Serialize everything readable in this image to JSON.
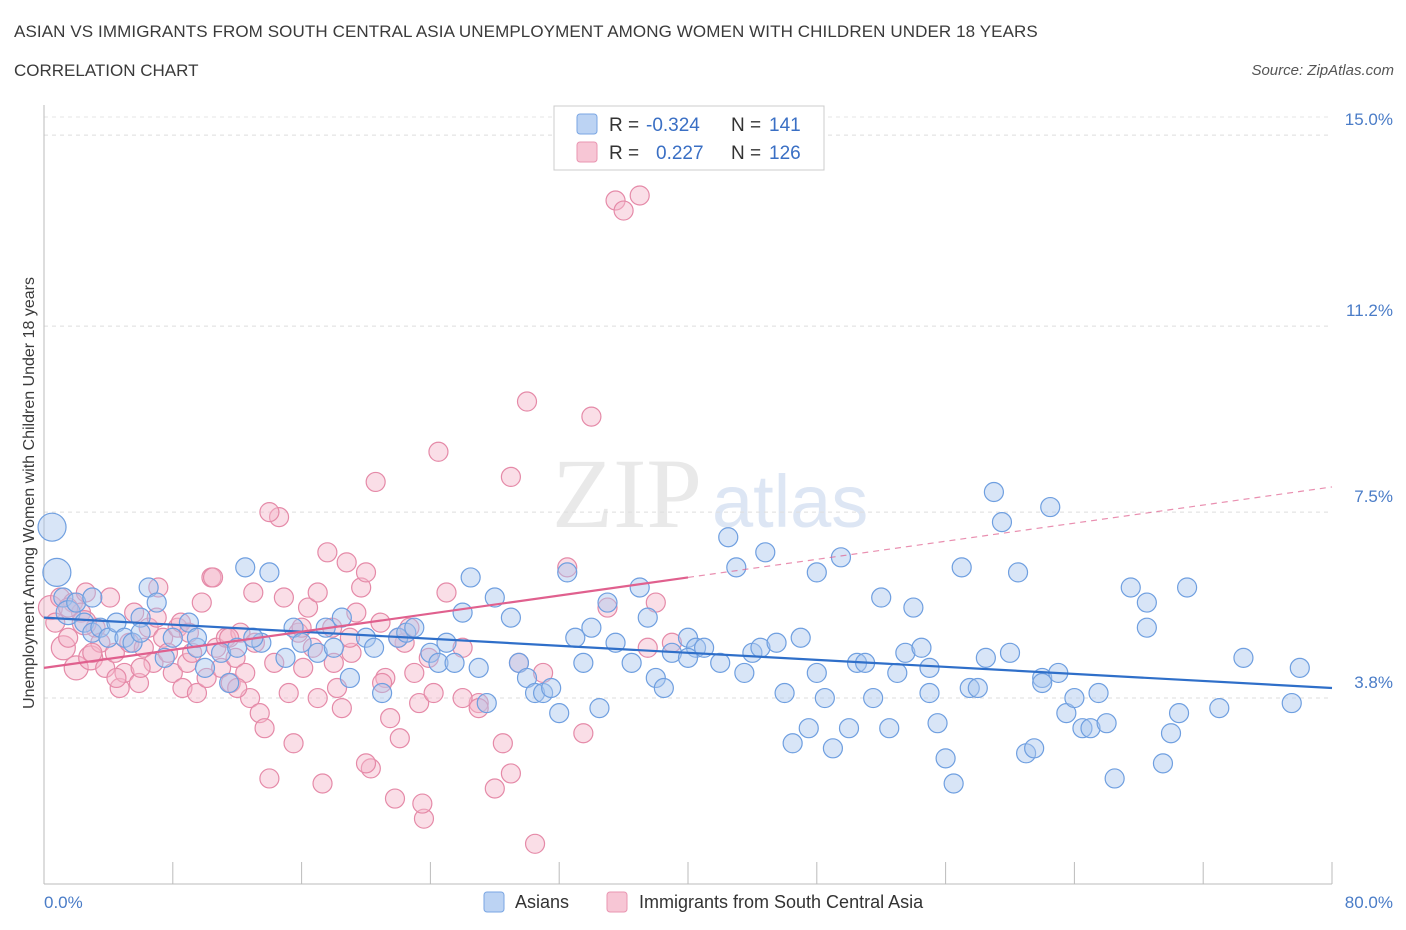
{
  "header": {
    "title": "ASIAN VS IMMIGRANTS FROM SOUTH CENTRAL ASIA UNEMPLOYMENT AMONG WOMEN WITH CHILDREN UNDER 18 YEARS",
    "subtitle": "CORRELATION CHART",
    "source": "Source: ZipAtlas.com"
  },
  "watermark": {
    "zip": "ZIP",
    "atlas": "atlas"
  },
  "legend": {
    "asians": {
      "r_label": "R =",
      "r_value": "-0.324",
      "n_label": "N =",
      "n_value": "141"
    },
    "immigrants": {
      "r_label": "R =",
      "r_value": "0.227",
      "n_label": "N =",
      "n_value": "126"
    }
  },
  "bottom_legend": {
    "asians": "Asians",
    "immigrants": "Immigrants from South Central Asia"
  },
  "colors": {
    "asian_fill": "#a9c6ee",
    "asian_stroke": "#6f9fe0",
    "asian_line": "#2f6fc9",
    "imm_fill": "#f4b6ca",
    "imm_stroke": "#e58aa8",
    "imm_line": "#e0608e",
    "tick_label": "#4a7cc7"
  },
  "chart_data": {
    "type": "scatter",
    "title": "ASIAN VS IMMIGRANTS FROM SOUTH CENTRAL ASIA UNEMPLOYMENT AMONG WOMEN WITH CHILDREN UNDER 18 YEARS",
    "ylabel": "Unemployment Among Women with Children Under 18 years",
    "xlabel": "",
    "xlim": [
      0,
      80
    ],
    "ylim": [
      0.1,
      15.6
    ],
    "x_tick_labels": [
      "0.0%",
      "80.0%"
    ],
    "y_ticks": [
      {
        "value": 3.8,
        "label": "3.8%"
      },
      {
        "value": 7.5,
        "label": "7.5%"
      },
      {
        "value": 11.2,
        "label": "11.2%"
      },
      {
        "value": 15.0,
        "label": "15.0%"
      }
    ],
    "grid": true,
    "legend_position": "top-center",
    "series": [
      {
        "name": "Asians",
        "trend": {
          "x": [
            0,
            80
          ],
          "y": [
            5.4,
            4.0
          ]
        },
        "points": [
          [
            0.5,
            7.2
          ],
          [
            0.8,
            6.3
          ],
          [
            1.2,
            5.8
          ],
          [
            1.5,
            5.5
          ],
          [
            2.0,
            5.7
          ],
          [
            2.5,
            5.3
          ],
          [
            3.0,
            5.1
          ],
          [
            3.5,
            5.2
          ],
          [
            4.0,
            5.0
          ],
          [
            4.5,
            5.3
          ],
          [
            5.0,
            5.0
          ],
          [
            5.5,
            4.9
          ],
          [
            6.0,
            5.4
          ],
          [
            6.5,
            6.0
          ],
          [
            7.0,
            5.7
          ],
          [
            7.5,
            4.6
          ],
          [
            8.0,
            5.0
          ],
          [
            9.0,
            5.3
          ],
          [
            9.5,
            4.8
          ],
          [
            10.0,
            4.4
          ],
          [
            11.0,
            4.7
          ],
          [
            11.5,
            4.1
          ],
          [
            12.0,
            4.8
          ],
          [
            12.5,
            6.4
          ],
          [
            13.5,
            4.9
          ],
          [
            14.0,
            6.3
          ],
          [
            15.0,
            4.6
          ],
          [
            15.5,
            5.2
          ],
          [
            16.0,
            4.9
          ],
          [
            17.0,
            4.7
          ],
          [
            17.5,
            5.2
          ],
          [
            18.0,
            4.8
          ],
          [
            19.0,
            4.2
          ],
          [
            20.0,
            5.0
          ],
          [
            20.5,
            4.8
          ],
          [
            21.0,
            3.9
          ],
          [
            22.0,
            5.0
          ],
          [
            22.5,
            5.1
          ],
          [
            23.0,
            5.2
          ],
          [
            24.0,
            4.7
          ],
          [
            24.5,
            4.5
          ],
          [
            25.5,
            4.5
          ],
          [
            26.0,
            5.5
          ],
          [
            26.5,
            6.2
          ],
          [
            27.0,
            4.4
          ],
          [
            27.5,
            3.7
          ],
          [
            28.0,
            5.8
          ],
          [
            29.0,
            5.4
          ],
          [
            29.5,
            4.5
          ],
          [
            30.0,
            4.2
          ],
          [
            30.5,
            3.9
          ],
          [
            31.0,
            3.9
          ],
          [
            31.5,
            4.0
          ],
          [
            32.0,
            3.5
          ],
          [
            32.5,
            6.3
          ],
          [
            33.0,
            5.0
          ],
          [
            33.5,
            4.5
          ],
          [
            34.5,
            3.6
          ],
          [
            35.0,
            5.7
          ],
          [
            35.5,
            4.9
          ],
          [
            36.5,
            4.5
          ],
          [
            37.0,
            6.0
          ],
          [
            37.5,
            5.4
          ],
          [
            38.0,
            4.2
          ],
          [
            38.5,
            4.0
          ],
          [
            39.0,
            4.7
          ],
          [
            40.0,
            5.0
          ],
          [
            40.5,
            4.8
          ],
          [
            41.0,
            4.8
          ],
          [
            42.0,
            4.5
          ],
          [
            42.5,
            7.0
          ],
          [
            43.0,
            6.4
          ],
          [
            43.5,
            4.3
          ],
          [
            44.0,
            4.7
          ],
          [
            44.5,
            4.8
          ],
          [
            44.8,
            6.7
          ],
          [
            45.5,
            4.9
          ],
          [
            46.0,
            3.9
          ],
          [
            46.5,
            2.9
          ],
          [
            47.0,
            5.0
          ],
          [
            47.5,
            3.2
          ],
          [
            48.0,
            6.3
          ],
          [
            48.5,
            3.8
          ],
          [
            49.0,
            2.8
          ],
          [
            49.5,
            6.6
          ],
          [
            50.0,
            3.2
          ],
          [
            50.5,
            4.5
          ],
          [
            51.0,
            4.5
          ],
          [
            51.5,
            3.8
          ],
          [
            52.0,
            5.8
          ],
          [
            52.5,
            3.2
          ],
          [
            53.0,
            4.3
          ],
          [
            53.5,
            4.7
          ],
          [
            54.0,
            5.6
          ],
          [
            54.5,
            4.8
          ],
          [
            55.0,
            3.9
          ],
          [
            55.5,
            3.3
          ],
          [
            56.0,
            2.6
          ],
          [
            56.5,
            2.1
          ],
          [
            57.0,
            6.4
          ],
          [
            57.5,
            4.0
          ],
          [
            58.0,
            4.0
          ],
          [
            58.5,
            4.6
          ],
          [
            59.0,
            7.9
          ],
          [
            59.5,
            7.3
          ],
          [
            60.0,
            4.7
          ],
          [
            60.5,
            6.3
          ],
          [
            61.0,
            2.7
          ],
          [
            61.5,
            2.8
          ],
          [
            62.0,
            4.2
          ],
          [
            62.5,
            7.6
          ],
          [
            63.0,
            4.3
          ],
          [
            63.5,
            3.5
          ],
          [
            64.0,
            3.8
          ],
          [
            64.5,
            3.2
          ],
          [
            65.0,
            3.2
          ],
          [
            65.5,
            3.9
          ],
          [
            66.0,
            3.3
          ],
          [
            66.5,
            2.2
          ],
          [
            67.5,
            6.0
          ],
          [
            68.5,
            5.2
          ],
          [
            68.5,
            5.7
          ],
          [
            69.5,
            2.5
          ],
          [
            70.0,
            3.1
          ],
          [
            70.5,
            3.5
          ],
          [
            71.0,
            6.0
          ],
          [
            73.0,
            3.6
          ],
          [
            74.5,
            4.6
          ],
          [
            77.5,
            3.7
          ],
          [
            78.0,
            4.4
          ],
          [
            3.0,
            5.8
          ],
          [
            6.0,
            5.1
          ],
          [
            9.5,
            5.0
          ],
          [
            13.0,
            5.0
          ],
          [
            18.5,
            5.4
          ],
          [
            25.0,
            4.9
          ],
          [
            34.0,
            5.2
          ],
          [
            40.0,
            4.6
          ],
          [
            48.0,
            4.3
          ],
          [
            55.0,
            4.4
          ],
          [
            62.0,
            4.1
          ]
        ]
      },
      {
        "name": "Immigrants from South Central Asia",
        "trend": {
          "x": [
            0,
            40
          ],
          "y": [
            4.4,
            6.2
          ]
        },
        "trend_extension": {
          "x": [
            40,
            80
          ],
          "y": [
            6.2,
            8.0
          ]
        },
        "points": [
          [
            0.4,
            5.6
          ],
          [
            0.7,
            5.3
          ],
          [
            1.0,
            5.8
          ],
          [
            1.2,
            4.8
          ],
          [
            1.5,
            5.0
          ],
          [
            1.8,
            5.7
          ],
          [
            2.0,
            4.4
          ],
          [
            2.3,
            5.5
          ],
          [
            2.6,
            5.9
          ],
          [
            2.9,
            4.6
          ],
          [
            3.2,
            5.2
          ],
          [
            3.5,
            4.9
          ],
          [
            3.8,
            4.4
          ],
          [
            4.1,
            5.8
          ],
          [
            4.4,
            4.7
          ],
          [
            4.7,
            4.0
          ],
          [
            5.0,
            4.3
          ],
          [
            5.3,
            4.9
          ],
          [
            5.6,
            5.5
          ],
          [
            5.9,
            4.1
          ],
          [
            6.2,
            4.8
          ],
          [
            6.5,
            5.2
          ],
          [
            6.8,
            4.5
          ],
          [
            7.1,
            6.0
          ],
          [
            7.4,
            5.0
          ],
          [
            7.7,
            4.7
          ],
          [
            8.0,
            4.3
          ],
          [
            8.3,
            5.2
          ],
          [
            8.6,
            4.0
          ],
          [
            8.9,
            4.5
          ],
          [
            9.2,
            4.7
          ],
          [
            9.5,
            3.9
          ],
          [
            9.8,
            5.7
          ],
          [
            10.1,
            4.2
          ],
          [
            10.4,
            6.2
          ],
          [
            10.7,
            4.8
          ],
          [
            11.0,
            4.4
          ],
          [
            11.3,
            5.0
          ],
          [
            11.6,
            4.1
          ],
          [
            11.9,
            4.6
          ],
          [
            12.2,
            5.1
          ],
          [
            12.5,
            4.3
          ],
          [
            12.8,
            3.8
          ],
          [
            13.1,
            4.9
          ],
          [
            13.4,
            3.5
          ],
          [
            13.7,
            3.2
          ],
          [
            14.0,
            2.2
          ],
          [
            14.3,
            4.5
          ],
          [
            14.6,
            7.4
          ],
          [
            14.9,
            5.8
          ],
          [
            15.2,
            3.9
          ],
          [
            15.5,
            2.9
          ],
          [
            15.8,
            5.1
          ],
          [
            16.1,
            4.4
          ],
          [
            16.4,
            5.6
          ],
          [
            16.7,
            4.8
          ],
          [
            17.0,
            3.8
          ],
          [
            17.3,
            2.1
          ],
          [
            17.6,
            6.7
          ],
          [
            17.9,
            5.2
          ],
          [
            18.2,
            4.0
          ],
          [
            18.5,
            3.6
          ],
          [
            18.8,
            6.5
          ],
          [
            19.1,
            4.7
          ],
          [
            19.4,
            5.5
          ],
          [
            19.7,
            6.0
          ],
          [
            20.0,
            6.3
          ],
          [
            20.3,
            2.4
          ],
          [
            20.6,
            8.1
          ],
          [
            20.9,
            5.3
          ],
          [
            21.2,
            4.2
          ],
          [
            21.5,
            3.4
          ],
          [
            21.8,
            1.8
          ],
          [
            22.1,
            3.0
          ],
          [
            22.4,
            4.9
          ],
          [
            22.7,
            5.2
          ],
          [
            23.0,
            4.3
          ],
          [
            23.3,
            3.7
          ],
          [
            23.6,
            1.4
          ],
          [
            23.9,
            4.6
          ],
          [
            24.2,
            3.9
          ],
          [
            24.5,
            8.7
          ],
          [
            25.0,
            5.9
          ],
          [
            26.0,
            4.8
          ],
          [
            27.0,
            3.7
          ],
          [
            28.0,
            2.0
          ],
          [
            28.5,
            2.9
          ],
          [
            29.0,
            8.2
          ],
          [
            29.5,
            4.5
          ],
          [
            30.0,
            9.7
          ],
          [
            31.0,
            4.3
          ],
          [
            32.5,
            6.4
          ],
          [
            33.5,
            3.1
          ],
          [
            34.0,
            9.4
          ],
          [
            35.0,
            5.6
          ],
          [
            35.5,
            13.7
          ],
          [
            36.0,
            13.5
          ],
          [
            37.0,
            13.8
          ],
          [
            37.5,
            4.8
          ],
          [
            38.0,
            5.7
          ],
          [
            39.0,
            4.9
          ],
          [
            13.0,
            5.9
          ],
          [
            14.0,
            7.5
          ],
          [
            17.0,
            5.9
          ],
          [
            19.0,
            5.0
          ],
          [
            21.0,
            4.1
          ],
          [
            20.0,
            2.5
          ],
          [
            23.5,
            1.7
          ],
          [
            26.0,
            3.8
          ],
          [
            27.0,
            3.6
          ],
          [
            29.0,
            2.3
          ],
          [
            30.5,
            0.9
          ],
          [
            22.0,
            5.0
          ],
          [
            10.5,
            6.2
          ],
          [
            8.5,
            5.3
          ],
          [
            6.0,
            4.4
          ],
          [
            4.5,
            4.2
          ],
          [
            2.5,
            5.3
          ],
          [
            3.0,
            4.7
          ],
          [
            1.5,
            5.6
          ],
          [
            11.5,
            5.0
          ],
          [
            16.0,
            5.2
          ],
          [
            18.0,
            4.5
          ],
          [
            12.0,
            4.0
          ],
          [
            9.0,
            5.1
          ],
          [
            7.0,
            5.4
          ]
        ]
      }
    ]
  }
}
